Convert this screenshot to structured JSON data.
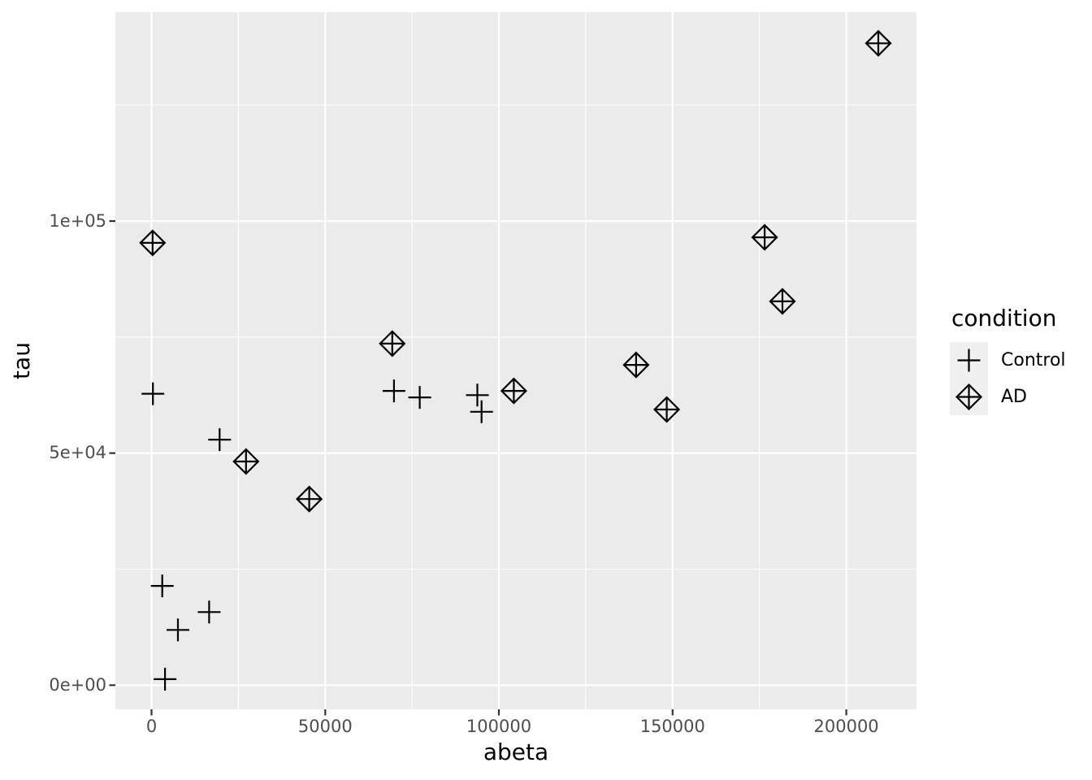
{
  "chart_data": {
    "type": "scatter",
    "title": "",
    "xlabel": "abeta",
    "ylabel": "tau",
    "xlim": [
      -10400,
      220200
    ],
    "ylim": [
      -5200,
      145000
    ],
    "grid": true,
    "x_ticks": {
      "values": [
        0,
        50000,
        100000,
        150000,
        200000
      ],
      "labels": [
        "0",
        "50000",
        "100000",
        "150000",
        "200000"
      ]
    },
    "y_ticks": {
      "values": [
        0,
        50000,
        100000
      ],
      "labels": [
        "0e+00",
        "5e+04",
        "1e+05"
      ]
    },
    "x_minor": [
      25000,
      75000,
      125000,
      175000
    ],
    "y_minor": [
      25000,
      75000,
      125000
    ],
    "legend": {
      "title": "condition",
      "position": "right"
    },
    "series": [
      {
        "name": "Control",
        "marker": "plus",
        "points": [
          [
            400,
            62800
          ],
          [
            19600,
            52900
          ],
          [
            3100,
            21400
          ],
          [
            7600,
            11900
          ],
          [
            16600,
            15750
          ],
          [
            3900,
            1300
          ],
          [
            69800,
            63400
          ],
          [
            77200,
            62000
          ],
          [
            93800,
            62500
          ],
          [
            95000,
            58900
          ]
        ]
      },
      {
        "name": "AD",
        "marker": "diamond-plus",
        "points": [
          [
            300,
            95300
          ],
          [
            27200,
            48200
          ],
          [
            45400,
            40100
          ],
          [
            69300,
            73600
          ],
          [
            104300,
            63400
          ],
          [
            139500,
            69000
          ],
          [
            148300,
            59400
          ],
          [
            176500,
            96500
          ],
          [
            181600,
            82700
          ],
          [
            209200,
            138300
          ]
        ]
      }
    ],
    "colors": {
      "panel_background": "#EBEBEB",
      "gridline": "#FFFFFF",
      "axis_tick": "#333333",
      "tick_label": "#4D4D4D",
      "marker": "#000000",
      "legend_key_background": "#F0F0F0"
    }
  }
}
